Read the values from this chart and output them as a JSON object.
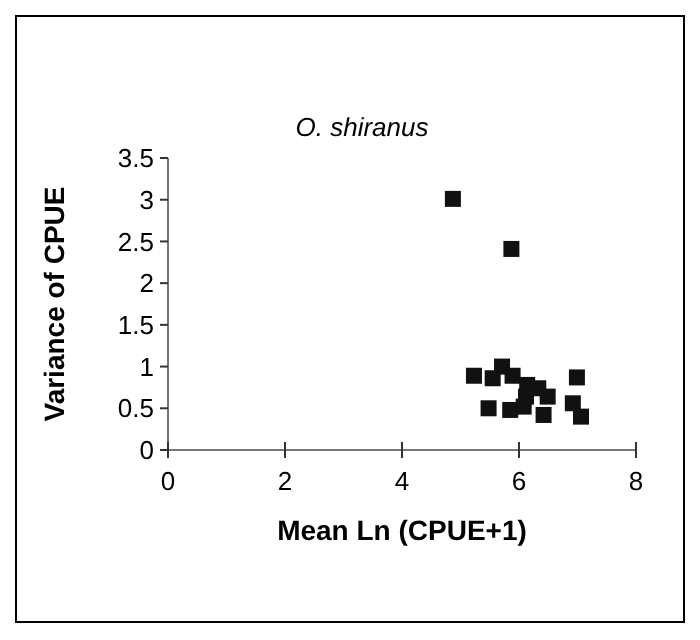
{
  "chart_data": {
    "type": "scatter",
    "title": "O. shiranus",
    "xlabel": "Mean Ln (CPUE+1)",
    "ylabel": "Variance of CPUE",
    "marker": "square",
    "color": "#111111",
    "x": [
      4.87,
      5.87,
      5.23,
      5.55,
      5.71,
      5.89,
      6.14,
      6.33,
      6.49,
      6.12,
      6.08,
      5.85,
      5.48,
      6.42,
      6.99,
      6.92,
      7.06
    ],
    "values": [
      3.01,
      2.41,
      0.89,
      0.86,
      1.0,
      0.89,
      0.78,
      0.74,
      0.64,
      0.64,
      0.52,
      0.48,
      0.5,
      0.42,
      0.87,
      0.56,
      0.4
    ],
    "xlim": [
      0,
      8
    ],
    "xticks": [
      0,
      2,
      4,
      6,
      8
    ],
    "ylim": [
      0,
      3.5
    ],
    "yticks": [
      0,
      0.5,
      1,
      1.5,
      2,
      2.5,
      3,
      3.5
    ]
  }
}
